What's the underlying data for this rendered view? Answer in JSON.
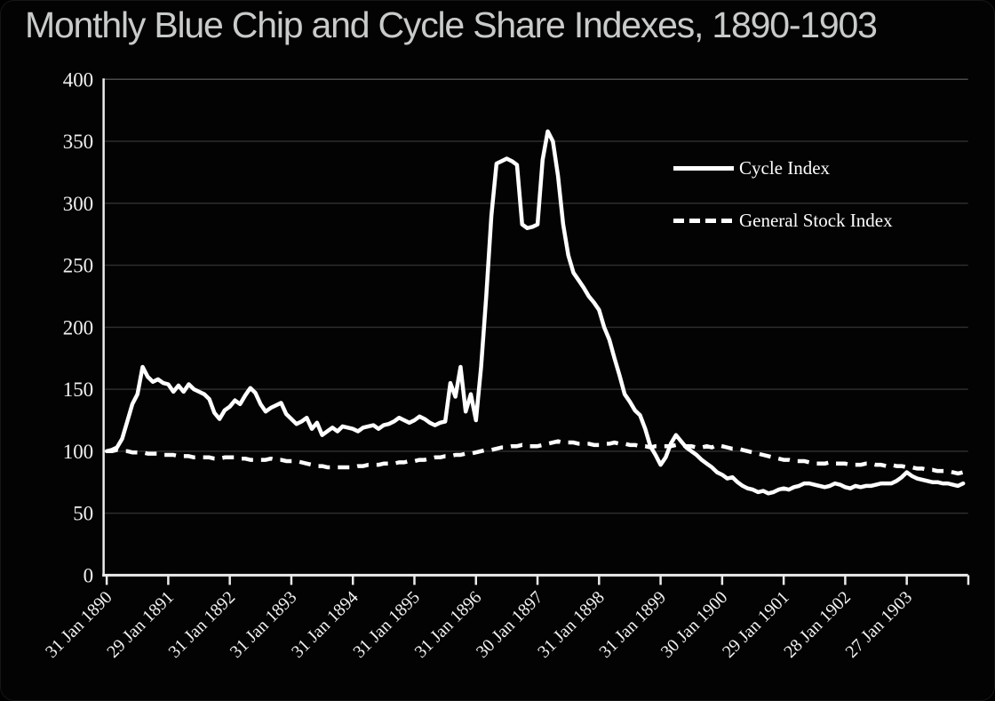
{
  "title": "Monthly Blue Chip and Cycle Share Indexes, 1890-1903",
  "colors": {
    "background": "#000000",
    "title_text": "#c9cbca",
    "axis": "#ebebeb",
    "grid": "#2d2d2d",
    "grid_top": "#4b4b4b",
    "series_line": "#ffffff",
    "label_text": "#f2f2f2"
  },
  "legend": {
    "items": [
      {
        "label": "Cycle Index",
        "style": "solid"
      },
      {
        "label": "General Stock Index",
        "style": "dashed"
      }
    ]
  },
  "chart_data": {
    "type": "line",
    "title": "Monthly Blue Chip and Cycle Share Indexes, 1890-1903",
    "xlabel": "",
    "ylabel": "",
    "x_unit": "month",
    "x_start": "Jan 1890",
    "x_end": "Dec 1903",
    "months_per_tick": 12,
    "x_tick_labels": [
      "31 Jan 1890",
      "29 Jan 1891",
      "31 Jan 1892",
      "31 Jan 1893",
      "31 Jan 1894",
      "31 Jan 1895",
      "31 Jan 1896",
      "30 Jan 1897",
      "31 Jan 1898",
      "31 Jan 1899",
      "30 Jan 1900",
      "29 Jan 1901",
      "28 Jan 1902",
      "27 Jan 1903"
    ],
    "ylim": [
      0,
      400
    ],
    "y_tick_step": 50,
    "grid": true,
    "legend_position": "upper right",
    "series": [
      {
        "name": "Cycle Index",
        "dash": false,
        "values": [
          100,
          101,
          103,
          110,
          124,
          138,
          146,
          168,
          160,
          156,
          158,
          155,
          154,
          148,
          153,
          148,
          154,
          150,
          148,
          146,
          142,
          131,
          126,
          133,
          136,
          141,
          138,
          145,
          151,
          147,
          138,
          132,
          135,
          137,
          139,
          130,
          126,
          122,
          124,
          127,
          118,
          123,
          113,
          116,
          119,
          116,
          120,
          119,
          118,
          116,
          119,
          120,
          121,
          118,
          121,
          122,
          124,
          127,
          125,
          123,
          125,
          128,
          126,
          123,
          121,
          123,
          124,
          155,
          144,
          168,
          132,
          146,
          125,
          168,
          225,
          290,
          332,
          334,
          336,
          334,
          331,
          283,
          280,
          281,
          283,
          335,
          358,
          350,
          322,
          283,
          258,
          244,
          238,
          232,
          225,
          220,
          214,
          200,
          190,
          175,
          161,
          146,
          140,
          133,
          129,
          118,
          104,
          97,
          89,
          95,
          106,
          113,
          108,
          103,
          100,
          97,
          93,
          90,
          87,
          83,
          81,
          78,
          79,
          75,
          72,
          70,
          69,
          67,
          68,
          66,
          67,
          69,
          70,
          69,
          71,
          72,
          74,
          74,
          73,
          72,
          71,
          72,
          74,
          73,
          71,
          70,
          72,
          71,
          72,
          72,
          73,
          74,
          74,
          74,
          76,
          79,
          83,
          80,
          78,
          77,
          76,
          75,
          75,
          74,
          74,
          73,
          72,
          74
        ]
      },
      {
        "name": "General Stock Index",
        "dash": true,
        "values": [
          100,
          100,
          101,
          100,
          100,
          99,
          99,
          99,
          98,
          98,
          98,
          97,
          97,
          97,
          96,
          96,
          96,
          95,
          95,
          95,
          95,
          94,
          94,
          95,
          95,
          95,
          94,
          94,
          93,
          93,
          93,
          93,
          94,
          93,
          93,
          92,
          92,
          92,
          91,
          90,
          89,
          88,
          88,
          87,
          87,
          87,
          87,
          87,
          87,
          88,
          88,
          89,
          89,
          89,
          90,
          90,
          90,
          91,
          91,
          92,
          92,
          93,
          93,
          94,
          95,
          95,
          96,
          96,
          97,
          97,
          98,
          98,
          99,
          100,
          101,
          101,
          102,
          103,
          103,
          104,
          104,
          105,
          104,
          104,
          104,
          105,
          106,
          107,
          108,
          107,
          107,
          107,
          106,
          106,
          106,
          105,
          105,
          106,
          106,
          107,
          106,
          106,
          105,
          105,
          104,
          104,
          103,
          104,
          104,
          104,
          104,
          105,
          105,
          104,
          104,
          103,
          103,
          104,
          103,
          105,
          104,
          103,
          102,
          102,
          101,
          100,
          99,
          98,
          97,
          96,
          95,
          94,
          93,
          93,
          92,
          92,
          92,
          91,
          90,
          90,
          90,
          91,
          90,
          90,
          90,
          89,
          89,
          89,
          90,
          90,
          89,
          89,
          88,
          89,
          88,
          88,
          87,
          87,
          86,
          86,
          85,
          85,
          84,
          84,
          84,
          83,
          82,
          83
        ]
      }
    ]
  }
}
